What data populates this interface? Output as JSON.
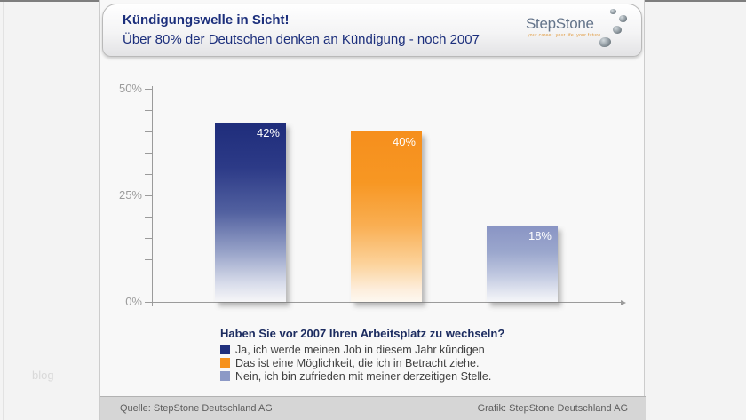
{
  "watermark": "blog",
  "header": {
    "title": "Kündigungswelle in Sicht!",
    "subtitle": "Über 80% der Deutschen denken an Kündigung - noch 2007",
    "logo_text": "StepStone",
    "logo_tagline": "your career. your life. your future."
  },
  "chart_data": {
    "type": "bar",
    "title": "Kündigungswelle in Sicht!",
    "subtitle": "Über 80% der Deutschen denken an Kündigung - noch 2007",
    "question": "Haben Sie vor 2007 Ihren Arbeitsplatz zu wechseln?",
    "categories": [
      "Ja, ich werde meinen Job in diesem Jahr kündigen",
      "Das ist eine Möglichkeit, die ich in Betracht ziehe.",
      "Nein, ich bin zufrieden mit meiner derzeitigen Stelle."
    ],
    "values": [
      42,
      40,
      18
    ],
    "value_labels": [
      "42%",
      "40%",
      "18%"
    ],
    "unit": "%",
    "xlabel": "",
    "ylabel": "",
    "ylim": [
      0,
      50
    ],
    "yticks_major": [
      0,
      25,
      50
    ],
    "ytick_labels": [
      "0%",
      "25%",
      "50%"
    ],
    "ytick_minor_step": 5,
    "grid": false,
    "legend_position": "below",
    "colors": [
      "#20307d",
      "#f6921e",
      "#8c99c6"
    ]
  },
  "legend": {
    "title": "Haben Sie vor 2007 Ihren Arbeitsplatz zu wechseln?",
    "items": [
      {
        "label": "Ja, ich werde meinen Job in diesem Jahr kündigen",
        "color": "#20307d"
      },
      {
        "label": "Das ist eine Möglichkeit, die ich in Betracht ziehe.",
        "color": "#f6921e"
      },
      {
        "label": "Nein, ich bin zufrieden mit meiner derzeitigen Stelle.",
        "color": "#8c99c6"
      }
    ]
  },
  "footer": {
    "source": "Quelle: StepStone Deutschland AG",
    "credit": "Grafik: StepStone Deutschland AG"
  }
}
